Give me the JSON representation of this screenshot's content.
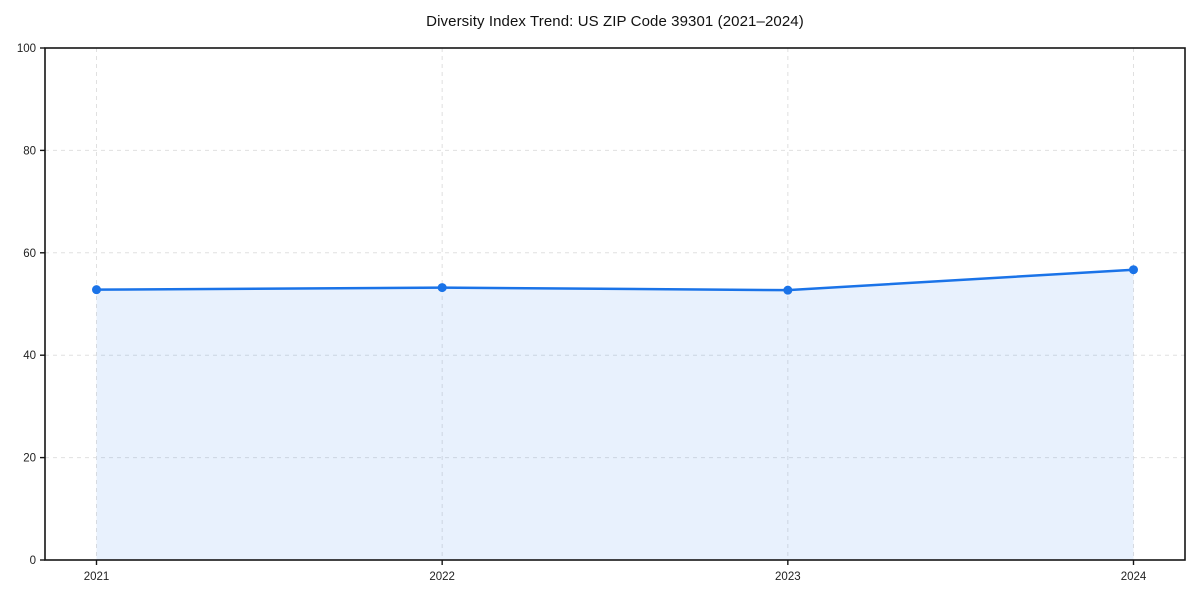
{
  "chart_data": {
    "type": "area",
    "title": "Diversity Index Trend: US ZIP Code 39301 (2021–2024)",
    "x": [
      2021,
      2022,
      2023,
      2024
    ],
    "xticks": [
      "2021",
      "2022",
      "2023",
      "2024"
    ],
    "series": [
      {
        "name": "Diversity Index",
        "values": [
          52.8,
          53.2,
          52.7,
          56.7
        ]
      }
    ],
    "xlabel": "",
    "ylabel": "",
    "ylim": [
      0,
      100
    ],
    "yticks": [
      0,
      20,
      40,
      60,
      80,
      100
    ],
    "grid": true,
    "grid_style": "dashed",
    "legend": "none",
    "colors": {
      "line": "#1a73e8",
      "marker": "#1a73e8",
      "fill": "#1a73e8",
      "fill_opacity": 0.1,
      "grid": "#e0e0e0",
      "spine": "#151515",
      "tick_label": "#222222",
      "title": "#111111",
      "background": "#ffffff"
    }
  }
}
